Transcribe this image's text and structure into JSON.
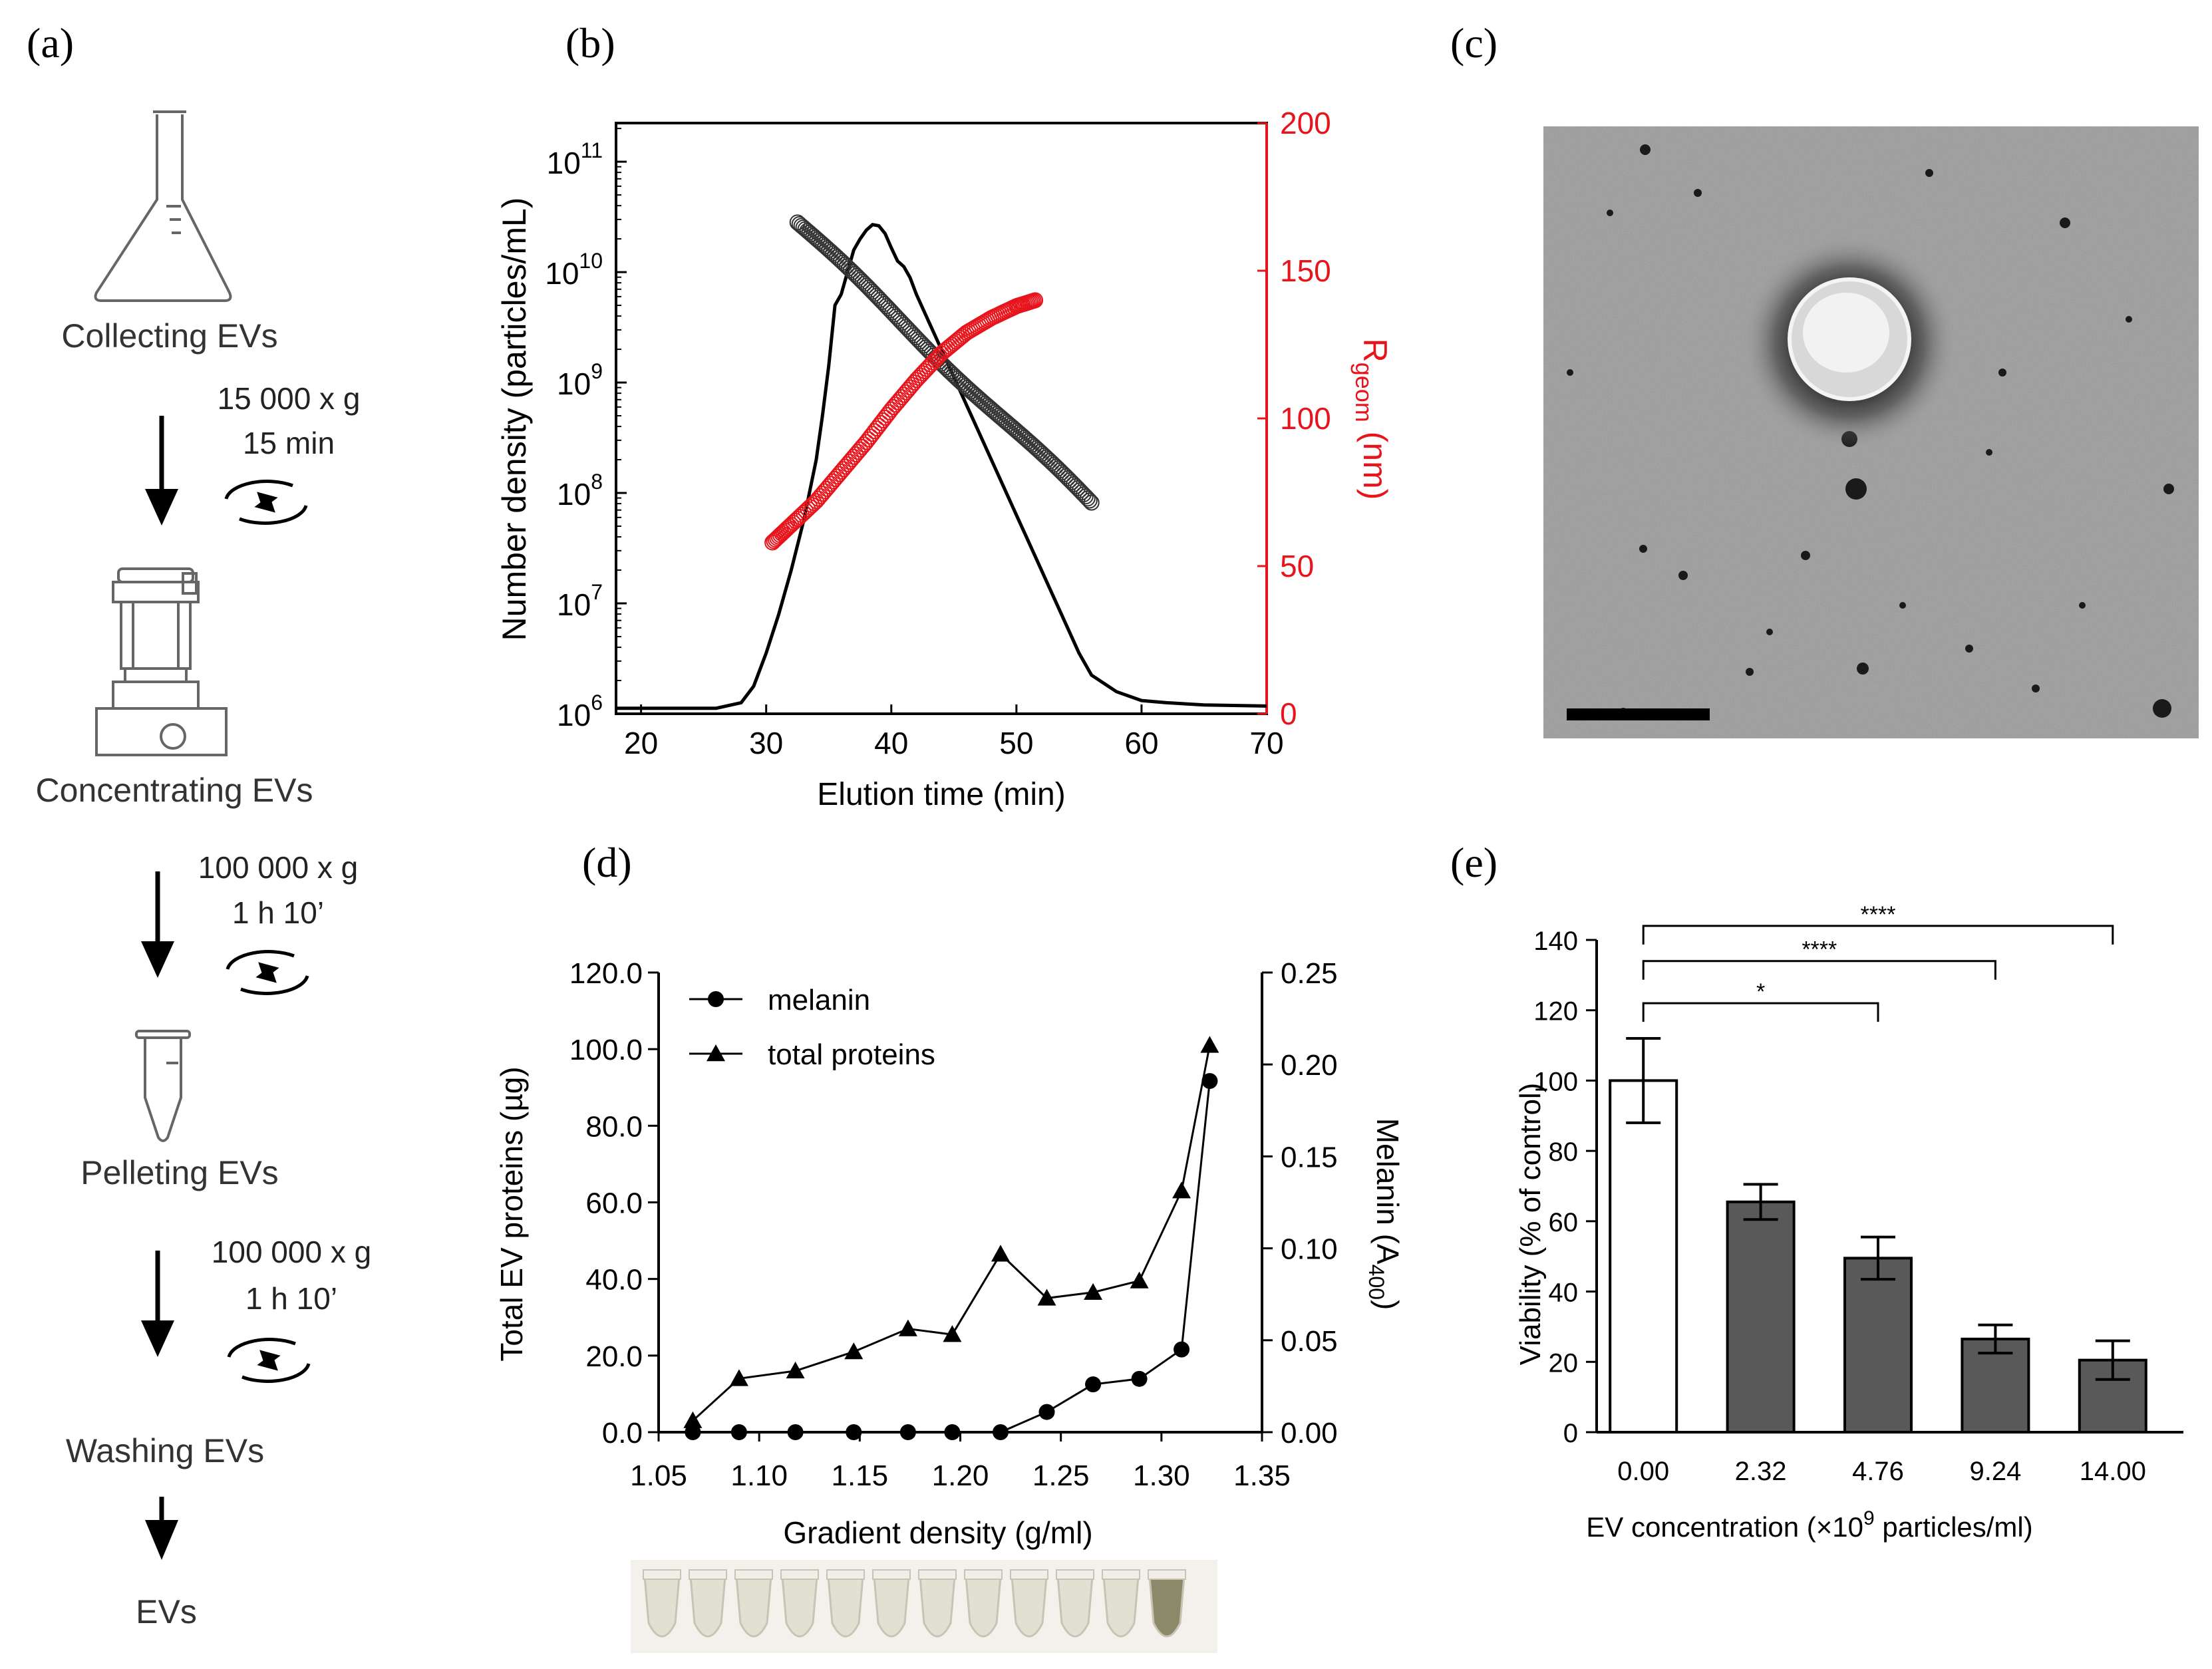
{
  "panel_labels": {
    "a": "(a)",
    "b": "(b)",
    "c": "(c)",
    "d": "(d)",
    "e": "(e)"
  },
  "workflow": {
    "steps": [
      {
        "label": "Collecting EVs",
        "icon": "flask-icon"
      },
      {
        "label": "Concentrating EVs",
        "icon": "ultrafiltration-device-icon"
      },
      {
        "label": "Pelleting EVs",
        "icon": "tube-icon"
      },
      {
        "label": "Washing EVs",
        "icon": ""
      },
      {
        "label": "EVs",
        "icon": ""
      }
    ],
    "spins": [
      {
        "line1": "15 000 x g",
        "line2": "15 min"
      },
      {
        "line1": "100 000 x g",
        "line2": "1 h 10’"
      },
      {
        "line1": "100 000 x g",
        "line2": "1 h 10’"
      }
    ]
  },
  "tem": {
    "description_colors": {
      "background": "#9a9a9a",
      "scale_bar": "#000000"
    }
  },
  "colors": {
    "black": "#000000",
    "red": "#e8141c",
    "bar_fill": "#595959",
    "bar_empty": "#ffffff"
  },
  "chart_data": [
    {
      "panel": "b",
      "type": "line",
      "xlabel": "Elution time (min)",
      "ylabel": "Number density (particles/mL)",
      "ylabel_right": "R",
      "ylabel_right_sub": "geom",
      "ylabel_right_unit": " (nm)",
      "xlim": [
        18,
        70
      ],
      "x_ticks": [
        "20",
        "30",
        "40",
        "50",
        "60",
        "70"
      ],
      "ylim_log10": [
        6,
        11.35
      ],
      "y_tick_bases": [
        "10",
        "10",
        "10",
        "10",
        "10",
        "10"
      ],
      "y_tick_exps": [
        "6",
        "7",
        "8",
        "9",
        "10",
        "11"
      ],
      "y2lim": [
        0,
        200
      ],
      "y2_ticks": [
        "0",
        "50",
        "100",
        "150",
        "200"
      ],
      "series": [
        {
          "name": "number density (line)",
          "axis": "left",
          "color": "#000000",
          "x": [
            18,
            26,
            28,
            29,
            30,
            31,
            32,
            33,
            34,
            34.5,
            35,
            35.5,
            36,
            36.5,
            37,
            37.5,
            38,
            38.5,
            39,
            39.5,
            40,
            40.5,
            41,
            41.5,
            42,
            43,
            44,
            45,
            46,
            47,
            48,
            49,
            50,
            51,
            52,
            53,
            54,
            55,
            56,
            58,
            60,
            62,
            65,
            70
          ],
          "log10_y": [
            6.05,
            6.05,
            6.1,
            6.25,
            6.55,
            6.9,
            7.3,
            7.75,
            8.3,
            8.7,
            9.15,
            9.7,
            9.8,
            10.0,
            10.2,
            10.3,
            10.38,
            10.43,
            10.42,
            10.35,
            10.22,
            10.1,
            10.05,
            9.95,
            9.8,
            9.55,
            9.3,
            9.05,
            8.8,
            8.55,
            8.3,
            8.05,
            7.8,
            7.55,
            7.3,
            7.05,
            6.8,
            6.55,
            6.35,
            6.2,
            6.12,
            6.1,
            6.08,
            6.07
          ]
        },
        {
          "name": "number density (markers)",
          "axis": "left",
          "color": "#000000",
          "marker": "open-circle",
          "x_range": [
            32.5,
            56
          ],
          "log10_y_range": [
            10.45,
            7.9
          ]
        },
        {
          "name": "R geom",
          "axis": "right",
          "color": "#e8141c",
          "marker": "open-circle",
          "x": [
            30.5,
            32,
            34,
            36,
            38,
            40,
            42,
            44,
            46,
            48,
            50,
            51.5
          ],
          "y": [
            58,
            64,
            72,
            82,
            92,
            103,
            113,
            122,
            129,
            134,
            138,
            140
          ]
        }
      ]
    },
    {
      "panel": "d",
      "type": "line",
      "xlabel": "Gradient density (g/ml)",
      "ylabel": "Total EV proteins (µg)",
      "ylabel_right": "Melanin (A",
      "ylabel_right_sub": "400",
      "ylabel_right_unit": ")",
      "xlim": [
        1.05,
        1.35
      ],
      "x_ticks": [
        "1.05",
        "1.10",
        "1.15",
        "1.20",
        "1.25",
        "1.30",
        "1.35"
      ],
      "ylim": [
        0,
        120
      ],
      "y_ticks": [
        "0.0",
        "20.0",
        "40.0",
        "60.0",
        "80.0",
        "100.0",
        "120.0"
      ],
      "y2lim": [
        0,
        0.25
      ],
      "y2_ticks": [
        "0.00",
        "0.05",
        "0.10",
        "0.15",
        "0.20",
        "0.25"
      ],
      "legend": [
        {
          "name": "melanin",
          "marker": "circle"
        },
        {
          "name": "total proteins",
          "marker": "triangle"
        }
      ],
      "series": [
        {
          "name": "melanin",
          "axis": "right",
          "marker": "circle",
          "x": [
            1.067,
            1.09,
            1.118,
            1.147,
            1.174,
            1.196,
            1.22,
            1.243,
            1.266,
            1.289,
            1.31,
            1.324
          ],
          "y": [
            0.0,
            0.0,
            0.0,
            0.0,
            0.0,
            0.0,
            0.0,
            0.011,
            0.026,
            0.029,
            0.045,
            0.191
          ]
        },
        {
          "name": "total proteins",
          "axis": "left",
          "marker": "triangle",
          "x": [
            1.067,
            1.09,
            1.118,
            1.147,
            1.174,
            1.196,
            1.22,
            1.243,
            1.266,
            1.289,
            1.31,
            1.324
          ],
          "y": [
            3.0,
            14.0,
            16.0,
            21.0,
            27.0,
            25.5,
            46.5,
            35.0,
            36.5,
            39.5,
            63.0,
            101.0
          ]
        }
      ]
    },
    {
      "panel": "e",
      "type": "bar",
      "xlabel": "EV concentration (×10",
      "xlabel_sup": "9",
      "xlabel_end": " particles/ml)",
      "ylabel": "Viability (% of control)",
      "ylim": [
        0,
        140
      ],
      "y_ticks": [
        "0",
        "20",
        "40",
        "60",
        "80",
        "100",
        "120",
        "140"
      ],
      "categories": [
        "0.00",
        "2.32",
        "4.76",
        "9.24",
        "14.00"
      ],
      "values": [
        100,
        65.5,
        49.5,
        26.5,
        20.5
      ],
      "errors": [
        12,
        5,
        6,
        4,
        5.5
      ],
      "significance": [
        {
          "from": "0.00",
          "to": "4.76",
          "label": "*"
        },
        {
          "from": "0.00",
          "to": "9.24",
          "label": "****"
        },
        {
          "from": "0.00",
          "to": "14.00",
          "label": "****"
        }
      ]
    }
  ]
}
